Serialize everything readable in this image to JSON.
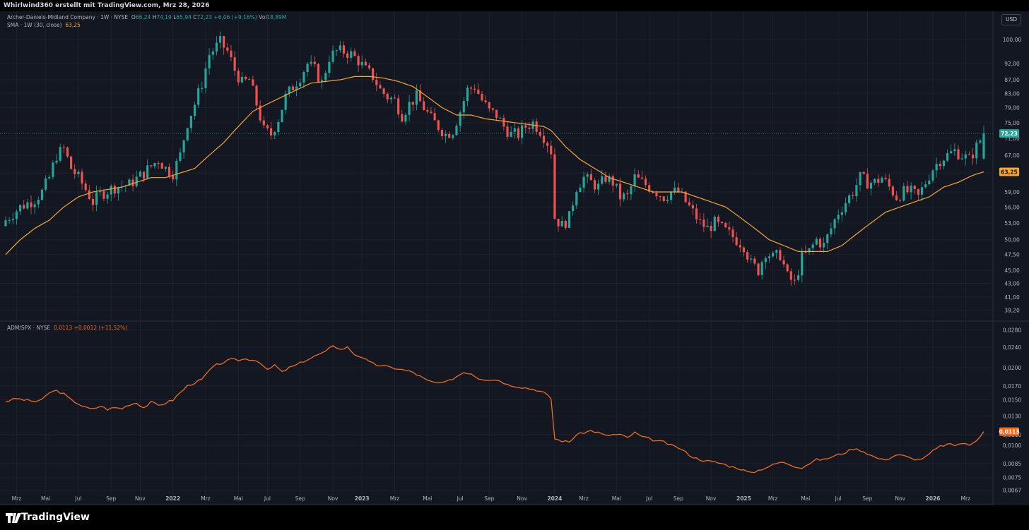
{
  "header": {
    "attribution": "Whirlwind360 erstellt mit TradingView.com, Mrz 28, 2026"
  },
  "legend": {
    "symbol": "Archer-Daniels-Midland Company · 1W · NYSE",
    "o_label": "O",
    "o_value": "66,24",
    "h_label": "H",
    "h_value": "74,19",
    "l_label": "L",
    "l_value": "65,94",
    "c_label": "C",
    "c_value": "72,23",
    "change": "+6,06 (+9,16%)",
    "vol_label": "Vol",
    "vol_value": "18,89M",
    "sma_label": "SMA · 1W (30, close)",
    "sma_value": "63,25",
    "ratio_label": "ADM/SPX · NYSE",
    "ratio_value": "0,0113",
    "ratio_change": "+0,0012 (+11,52%)"
  },
  "currency": "USD",
  "footer": {
    "brand": "TradingView"
  },
  "colors": {
    "background": "#131722",
    "up": "#26a69a",
    "down": "#ef5350",
    "sma": "#f6a530",
    "ratio": "#f26b1d",
    "grid": "#1e222d"
  },
  "chart_data": [
    {
      "type": "candlestick",
      "title": "Archer-Daniels-Midland Company · 1W · NYSE",
      "price_axis": {
        "scale": "log",
        "ticks": [
          "100,00",
          "92,00",
          "87,00",
          "83,00",
          "79,00",
          "75,00",
          "71,00",
          "67,00",
          "63,00",
          "59,00",
          "56,00",
          "53,00",
          "50,00",
          "47,50",
          "45,00",
          "43,00",
          "41,00",
          "39,20"
        ],
        "current_price": "72,23",
        "sma_current": "63,25",
        "range": [
          38,
          104
        ]
      },
      "time_axis": {
        "labels": [
          "Mrz",
          "Mai",
          "Jul",
          "Sep",
          "Nov",
          "2022",
          "Mrz",
          "Mai",
          "Jul",
          "Sep",
          "Nov",
          "2023",
          "Mrz",
          "Mai",
          "Jul",
          "Sep",
          "Nov",
          "2024",
          "Mrz",
          "Mai",
          "Jul",
          "Sep",
          "Nov",
          "2025",
          "Mrz",
          "Mai",
          "Jul",
          "Sep",
          "Nov",
          "2026",
          "Mrz"
        ],
        "label_weeks": [
          3,
          11,
          20,
          29,
          37,
          46,
          55,
          64,
          72,
          81,
          90,
          98,
          107,
          116,
          125,
          133,
          142,
          151,
          159,
          168,
          177,
          185,
          194,
          203,
          211,
          220,
          229,
          237,
          246,
          255,
          264
        ],
        "week_count": 270
      },
      "close_path_key": [
        [
          0,
          53.5
        ],
        [
          4,
          56
        ],
        [
          8,
          57.5
        ],
        [
          10,
          59
        ],
        [
          12,
          62
        ],
        [
          14,
          67
        ],
        [
          16,
          68.5
        ],
        [
          18,
          64
        ],
        [
          20,
          62
        ],
        [
          24,
          57
        ],
        [
          26,
          58.5
        ],
        [
          30,
          60
        ],
        [
          34,
          60.5
        ],
        [
          38,
          63
        ],
        [
          42,
          66
        ],
        [
          44,
          64
        ],
        [
          46,
          63
        ],
        [
          48,
          67
        ],
        [
          50,
          75
        ],
        [
          52,
          80
        ],
        [
          54,
          86
        ],
        [
          56,
          95
        ],
        [
          59,
          99
        ],
        [
          61,
          96
        ],
        [
          63,
          90
        ],
        [
          65,
          86
        ],
        [
          67,
          87
        ],
        [
          69,
          80
        ],
        [
          71,
          73
        ],
        [
          73,
          72
        ],
        [
          75,
          76
        ],
        [
          77,
          82
        ],
        [
          79,
          85
        ],
        [
          81,
          88
        ],
        [
          83,
          92
        ],
        [
          85,
          90
        ],
        [
          87,
          86
        ],
        [
          89,
          94
        ],
        [
          91,
          96
        ],
        [
          93,
          96
        ],
        [
          95,
          95
        ],
        [
          97,
          93
        ],
        [
          99,
          90
        ],
        [
          101,
          88
        ],
        [
          103,
          84
        ],
        [
          105,
          82
        ],
        [
          107,
          81
        ],
        [
          109,
          77
        ],
        [
          111,
          80
        ],
        [
          113,
          82
        ],
        [
          115,
          79
        ],
        [
          117,
          76
        ],
        [
          119,
          74
        ],
        [
          121,
          72
        ],
        [
          123,
          73
        ],
        [
          125,
          78
        ],
        [
          127,
          84
        ],
        [
          129,
          85
        ],
        [
          131,
          81
        ],
        [
          133,
          78
        ],
        [
          135,
          77
        ],
        [
          137,
          74
        ],
        [
          139,
          72
        ],
        [
          141,
          72
        ],
        [
          143,
          74
        ],
        [
          145,
          75
        ],
        [
          147,
          73
        ],
        [
          149,
          70
        ],
        [
          150,
          68
        ],
        [
          151,
          54
        ],
        [
          153,
          52.5
        ],
        [
          155,
          54
        ],
        [
          157,
          60
        ],
        [
          159,
          62
        ],
        [
          161,
          61
        ],
        [
          163,
          60
        ],
        [
          165,
          62
        ],
        [
          167,
          61
        ],
        [
          169,
          58
        ],
        [
          171,
          58
        ],
        [
          173,
          62
        ],
        [
          175,
          61
        ],
        [
          177,
          60
        ],
        [
          179,
          59
        ],
        [
          181,
          58
        ],
        [
          183,
          59
        ],
        [
          185,
          59
        ],
        [
          187,
          57
        ],
        [
          189,
          55
        ],
        [
          191,
          53
        ],
        [
          193,
          52
        ],
        [
          195,
          53
        ],
        [
          197,
          52
        ],
        [
          199,
          51
        ],
        [
          201,
          50
        ],
        [
          203,
          49
        ],
        [
          205,
          46
        ],
        [
          207,
          45
        ],
        [
          209,
          48
        ],
        [
          211,
          47
        ],
        [
          213,
          47.5
        ],
        [
          215,
          44
        ],
        [
          217,
          43
        ],
        [
          219,
          47
        ],
        [
          221,
          48
        ],
        [
          223,
          50
        ],
        [
          225,
          49
        ],
        [
          227,
          52
        ],
        [
          229,
          55
        ],
        [
          231,
          57
        ],
        [
          233,
          59
        ],
        [
          235,
          62
        ],
        [
          237,
          61
        ],
        [
          239,
          61
        ],
        [
          241,
          62
        ],
        [
          243,
          60
        ],
        [
          245,
          58
        ],
        [
          247,
          59
        ],
        [
          249,
          59
        ],
        [
          251,
          58
        ],
        [
          253,
          61
        ],
        [
          255,
          64
        ],
        [
          257,
          66
        ],
        [
          259,
          67
        ],
        [
          261,
          68
        ],
        [
          263,
          67
        ],
        [
          265,
          66
        ],
        [
          267,
          69
        ],
        [
          269,
          72.23
        ]
      ],
      "sma_path_key": [
        [
          0,
          47.5
        ],
        [
          4,
          50
        ],
        [
          8,
          52
        ],
        [
          12,
          53.5
        ],
        [
          16,
          56
        ],
        [
          20,
          58
        ],
        [
          24,
          59
        ],
        [
          28,
          59.5
        ],
        [
          32,
          60
        ],
        [
          36,
          61
        ],
        [
          40,
          62
        ],
        [
          44,
          62
        ],
        [
          48,
          63
        ],
        [
          52,
          64
        ],
        [
          56,
          67
        ],
        [
          60,
          70
        ],
        [
          64,
          74
        ],
        [
          68,
          78
        ],
        [
          72,
          80
        ],
        [
          76,
          82
        ],
        [
          80,
          84
        ],
        [
          84,
          86
        ],
        [
          88,
          86.5
        ],
        [
          92,
          87
        ],
        [
          96,
          88
        ],
        [
          100,
          88
        ],
        [
          104,
          87.5
        ],
        [
          108,
          86.5
        ],
        [
          112,
          85
        ],
        [
          116,
          82
        ],
        [
          120,
          79
        ],
        [
          124,
          77
        ],
        [
          128,
          77
        ],
        [
          132,
          76
        ],
        [
          136,
          75.5
        ],
        [
          140,
          75
        ],
        [
          144,
          74.5
        ],
        [
          148,
          74
        ],
        [
          150,
          73
        ],
        [
          154,
          69
        ],
        [
          158,
          66
        ],
        [
          162,
          64
        ],
        [
          166,
          62
        ],
        [
          170,
          61
        ],
        [
          174,
          60
        ],
        [
          178,
          59
        ],
        [
          182,
          59
        ],
        [
          186,
          59
        ],
        [
          190,
          58
        ],
        [
          194,
          57
        ],
        [
          198,
          56
        ],
        [
          202,
          54
        ],
        [
          206,
          52
        ],
        [
          210,
          50
        ],
        [
          214,
          49
        ],
        [
          218,
          48
        ],
        [
          222,
          48
        ],
        [
          226,
          48
        ],
        [
          230,
          49
        ],
        [
          234,
          51
        ],
        [
          238,
          53
        ],
        [
          242,
          55
        ],
        [
          246,
          56
        ],
        [
          250,
          57
        ],
        [
          254,
          58
        ],
        [
          258,
          60
        ],
        [
          262,
          61
        ],
        [
          266,
          62.5
        ],
        [
          269,
          63.25
        ]
      ]
    },
    {
      "type": "line",
      "title": "ADM/SPX · NYSE",
      "y_axis": {
        "ticks": [
          "0,0280",
          "0,0240",
          "0,0200",
          "0,0170",
          "0,0150",
          "0,0130",
          "0,0110",
          "0,0100",
          "0,0085",
          "0,0075",
          "0,0067"
        ],
        "current": "0,0113",
        "scale": "log",
        "range": [
          0.0066,
          0.029
        ]
      },
      "path_key": [
        [
          0,
          0.0148
        ],
        [
          3,
          0.0152
        ],
        [
          5,
          0.015
        ],
        [
          8,
          0.0148
        ],
        [
          10,
          0.015
        ],
        [
          12,
          0.016
        ],
        [
          14,
          0.0163
        ],
        [
          16,
          0.0158
        ],
        [
          18,
          0.015
        ],
        [
          20,
          0.0145
        ],
        [
          22,
          0.014
        ],
        [
          24,
          0.0138
        ],
        [
          26,
          0.0142
        ],
        [
          28,
          0.0138
        ],
        [
          30,
          0.014
        ],
        [
          32,
          0.0139
        ],
        [
          34,
          0.0144
        ],
        [
          36,
          0.0146
        ],
        [
          38,
          0.014
        ],
        [
          40,
          0.0147
        ],
        [
          42,
          0.0143
        ],
        [
          44,
          0.0146
        ],
        [
          46,
          0.015
        ],
        [
          48,
          0.016
        ],
        [
          50,
          0.017
        ],
        [
          52,
          0.0175
        ],
        [
          54,
          0.018
        ],
        [
          56,
          0.0195
        ],
        [
          58,
          0.0205
        ],
        [
          60,
          0.021
        ],
        [
          62,
          0.0215
        ],
        [
          64,
          0.0214
        ],
        [
          66,
          0.0216
        ],
        [
          68,
          0.0215
        ],
        [
          70,
          0.021
        ],
        [
          72,
          0.0195
        ],
        [
          74,
          0.0205
        ],
        [
          76,
          0.0192
        ],
        [
          78,
          0.02
        ],
        [
          80,
          0.0205
        ],
        [
          82,
          0.0212
        ],
        [
          84,
          0.0218
        ],
        [
          86,
          0.0225
        ],
        [
          88,
          0.023
        ],
        [
          90,
          0.0245
        ],
        [
          92,
          0.0235
        ],
        [
          94,
          0.024
        ],
        [
          96,
          0.0225
        ],
        [
          98,
          0.022
        ],
        [
          100,
          0.021
        ],
        [
          102,
          0.0205
        ],
        [
          104,
          0.0203
        ],
        [
          106,
          0.02
        ],
        [
          108,
          0.0198
        ],
        [
          110,
          0.0195
        ],
        [
          112,
          0.0192
        ],
        [
          114,
          0.0185
        ],
        [
          116,
          0.0178
        ],
        [
          118,
          0.0175
        ],
        [
          120,
          0.0174
        ],
        [
          122,
          0.0178
        ],
        [
          124,
          0.0185
        ],
        [
          126,
          0.0192
        ],
        [
          128,
          0.019
        ],
        [
          130,
          0.0182
        ],
        [
          132,
          0.018
        ],
        [
          134,
          0.018
        ],
        [
          136,
          0.0178
        ],
        [
          138,
          0.0172
        ],
        [
          140,
          0.017
        ],
        [
          142,
          0.0168
        ],
        [
          144,
          0.0166
        ],
        [
          146,
          0.0164
        ],
        [
          148,
          0.016
        ],
        [
          150,
          0.0152
        ],
        [
          151,
          0.0106
        ],
        [
          153,
          0.0104
        ],
        [
          155,
          0.0103
        ],
        [
          157,
          0.011
        ],
        [
          159,
          0.0112
        ],
        [
          161,
          0.0114
        ],
        [
          163,
          0.0112
        ],
        [
          165,
          0.0109
        ],
        [
          167,
          0.011
        ],
        [
          169,
          0.011
        ],
        [
          171,
          0.0107
        ],
        [
          173,
          0.0112
        ],
        [
          175,
          0.0108
        ],
        [
          177,
          0.0106
        ],
        [
          179,
          0.0104
        ],
        [
          181,
          0.0103
        ],
        [
          183,
          0.01
        ],
        [
          185,
          0.0098
        ],
        [
          187,
          0.0094
        ],
        [
          189,
          0.009
        ],
        [
          191,
          0.0088
        ],
        [
          193,
          0.0087
        ],
        [
          195,
          0.0086
        ],
        [
          197,
          0.0085
        ],
        [
          199,
          0.0083
        ],
        [
          201,
          0.0082
        ],
        [
          203,
          0.008
        ],
        [
          205,
          0.0078
        ],
        [
          207,
          0.008
        ],
        [
          209,
          0.0082
        ],
        [
          211,
          0.0084
        ],
        [
          213,
          0.0086
        ],
        [
          215,
          0.0085
        ],
        [
          217,
          0.0083
        ],
        [
          219,
          0.0082
        ],
        [
          221,
          0.0085
        ],
        [
          223,
          0.0088
        ],
        [
          225,
          0.0088
        ],
        [
          227,
          0.009
        ],
        [
          229,
          0.0092
        ],
        [
          231,
          0.0094
        ],
        [
          233,
          0.0097
        ],
        [
          235,
          0.0096
        ],
        [
          237,
          0.0093
        ],
        [
          239,
          0.009
        ],
        [
          241,
          0.0088
        ],
        [
          243,
          0.0089
        ],
        [
          245,
          0.0092
        ],
        [
          247,
          0.0091
        ],
        [
          249,
          0.0089
        ],
        [
          251,
          0.0088
        ],
        [
          253,
          0.009
        ],
        [
          255,
          0.0095
        ],
        [
          257,
          0.0099
        ],
        [
          259,
          0.0101
        ],
        [
          261,
          0.01
        ],
        [
          263,
          0.0102
        ],
        [
          265,
          0.01
        ],
        [
          267,
          0.0105
        ],
        [
          269,
          0.0113
        ]
      ]
    }
  ]
}
